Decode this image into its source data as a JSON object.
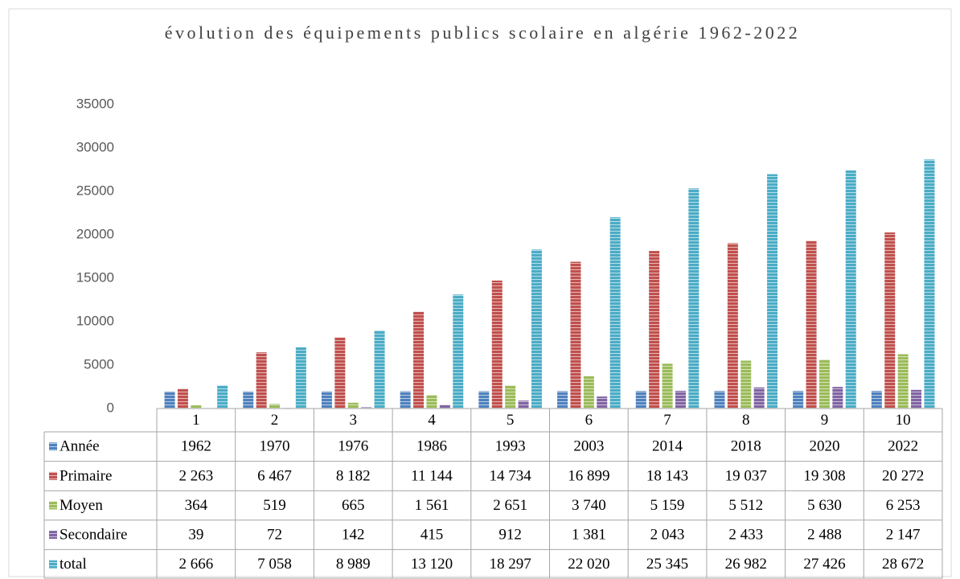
{
  "chart_data": {
    "type": "bar",
    "title": "évolution des équipements publics scolaire en algérie 1962-2022",
    "categories": [
      "1",
      "2",
      "3",
      "4",
      "5",
      "6",
      "7",
      "8",
      "9",
      "10"
    ],
    "series": [
      {
        "name": "Année",
        "color": "#4f81bd",
        "values": [
          1962,
          1970,
          1976,
          1986,
          1993,
          2003,
          2014,
          2018,
          2020,
          2022
        ]
      },
      {
        "name": "Primaire",
        "color": "#c0504d",
        "values": [
          2263,
          6467,
          8182,
          11144,
          14734,
          16899,
          18143,
          19037,
          19308,
          20272
        ],
        "value_labels": [
          "2 263",
          "6 467",
          "8 182",
          "11 144",
          "14 734",
          "16 899",
          "18 143",
          "19 037",
          "19 308",
          "20 272"
        ]
      },
      {
        "name": "Moyen",
        "color": "#9bbb59",
        "values": [
          364,
          519,
          665,
          1561,
          2651,
          3740,
          5159,
          5512,
          5630,
          6253
        ],
        "value_labels": [
          "364",
          "519",
          "665",
          "1 561",
          "2 651",
          "3 740",
          "5 159",
          "5 512",
          "5 630",
          "6 253"
        ]
      },
      {
        "name": "Secondaire",
        "color": "#8064a2",
        "values": [
          39,
          72,
          142,
          415,
          912,
          1381,
          2043,
          2433,
          2488,
          2147
        ],
        "value_labels": [
          "39",
          "72",
          "142",
          "415",
          "912",
          "1 381",
          "2 043",
          "2 433",
          "2 488",
          "2 147"
        ]
      },
      {
        "name": "total",
        "color": "#4bacc6",
        "values": [
          2666,
          7058,
          8989,
          13120,
          18297,
          22020,
          25345,
          26982,
          27426,
          28672
        ],
        "value_labels": [
          "2 666",
          "7 058",
          "8 989",
          "13 120",
          "18 297",
          "22 020",
          "25 345",
          "26 982",
          "27 426",
          "28 672"
        ]
      }
    ],
    "ylim": [
      0,
      35000
    ],
    "yticks": [
      0,
      5000,
      10000,
      15000,
      20000,
      25000,
      30000,
      35000
    ],
    "grid": false,
    "data_table": true
  }
}
